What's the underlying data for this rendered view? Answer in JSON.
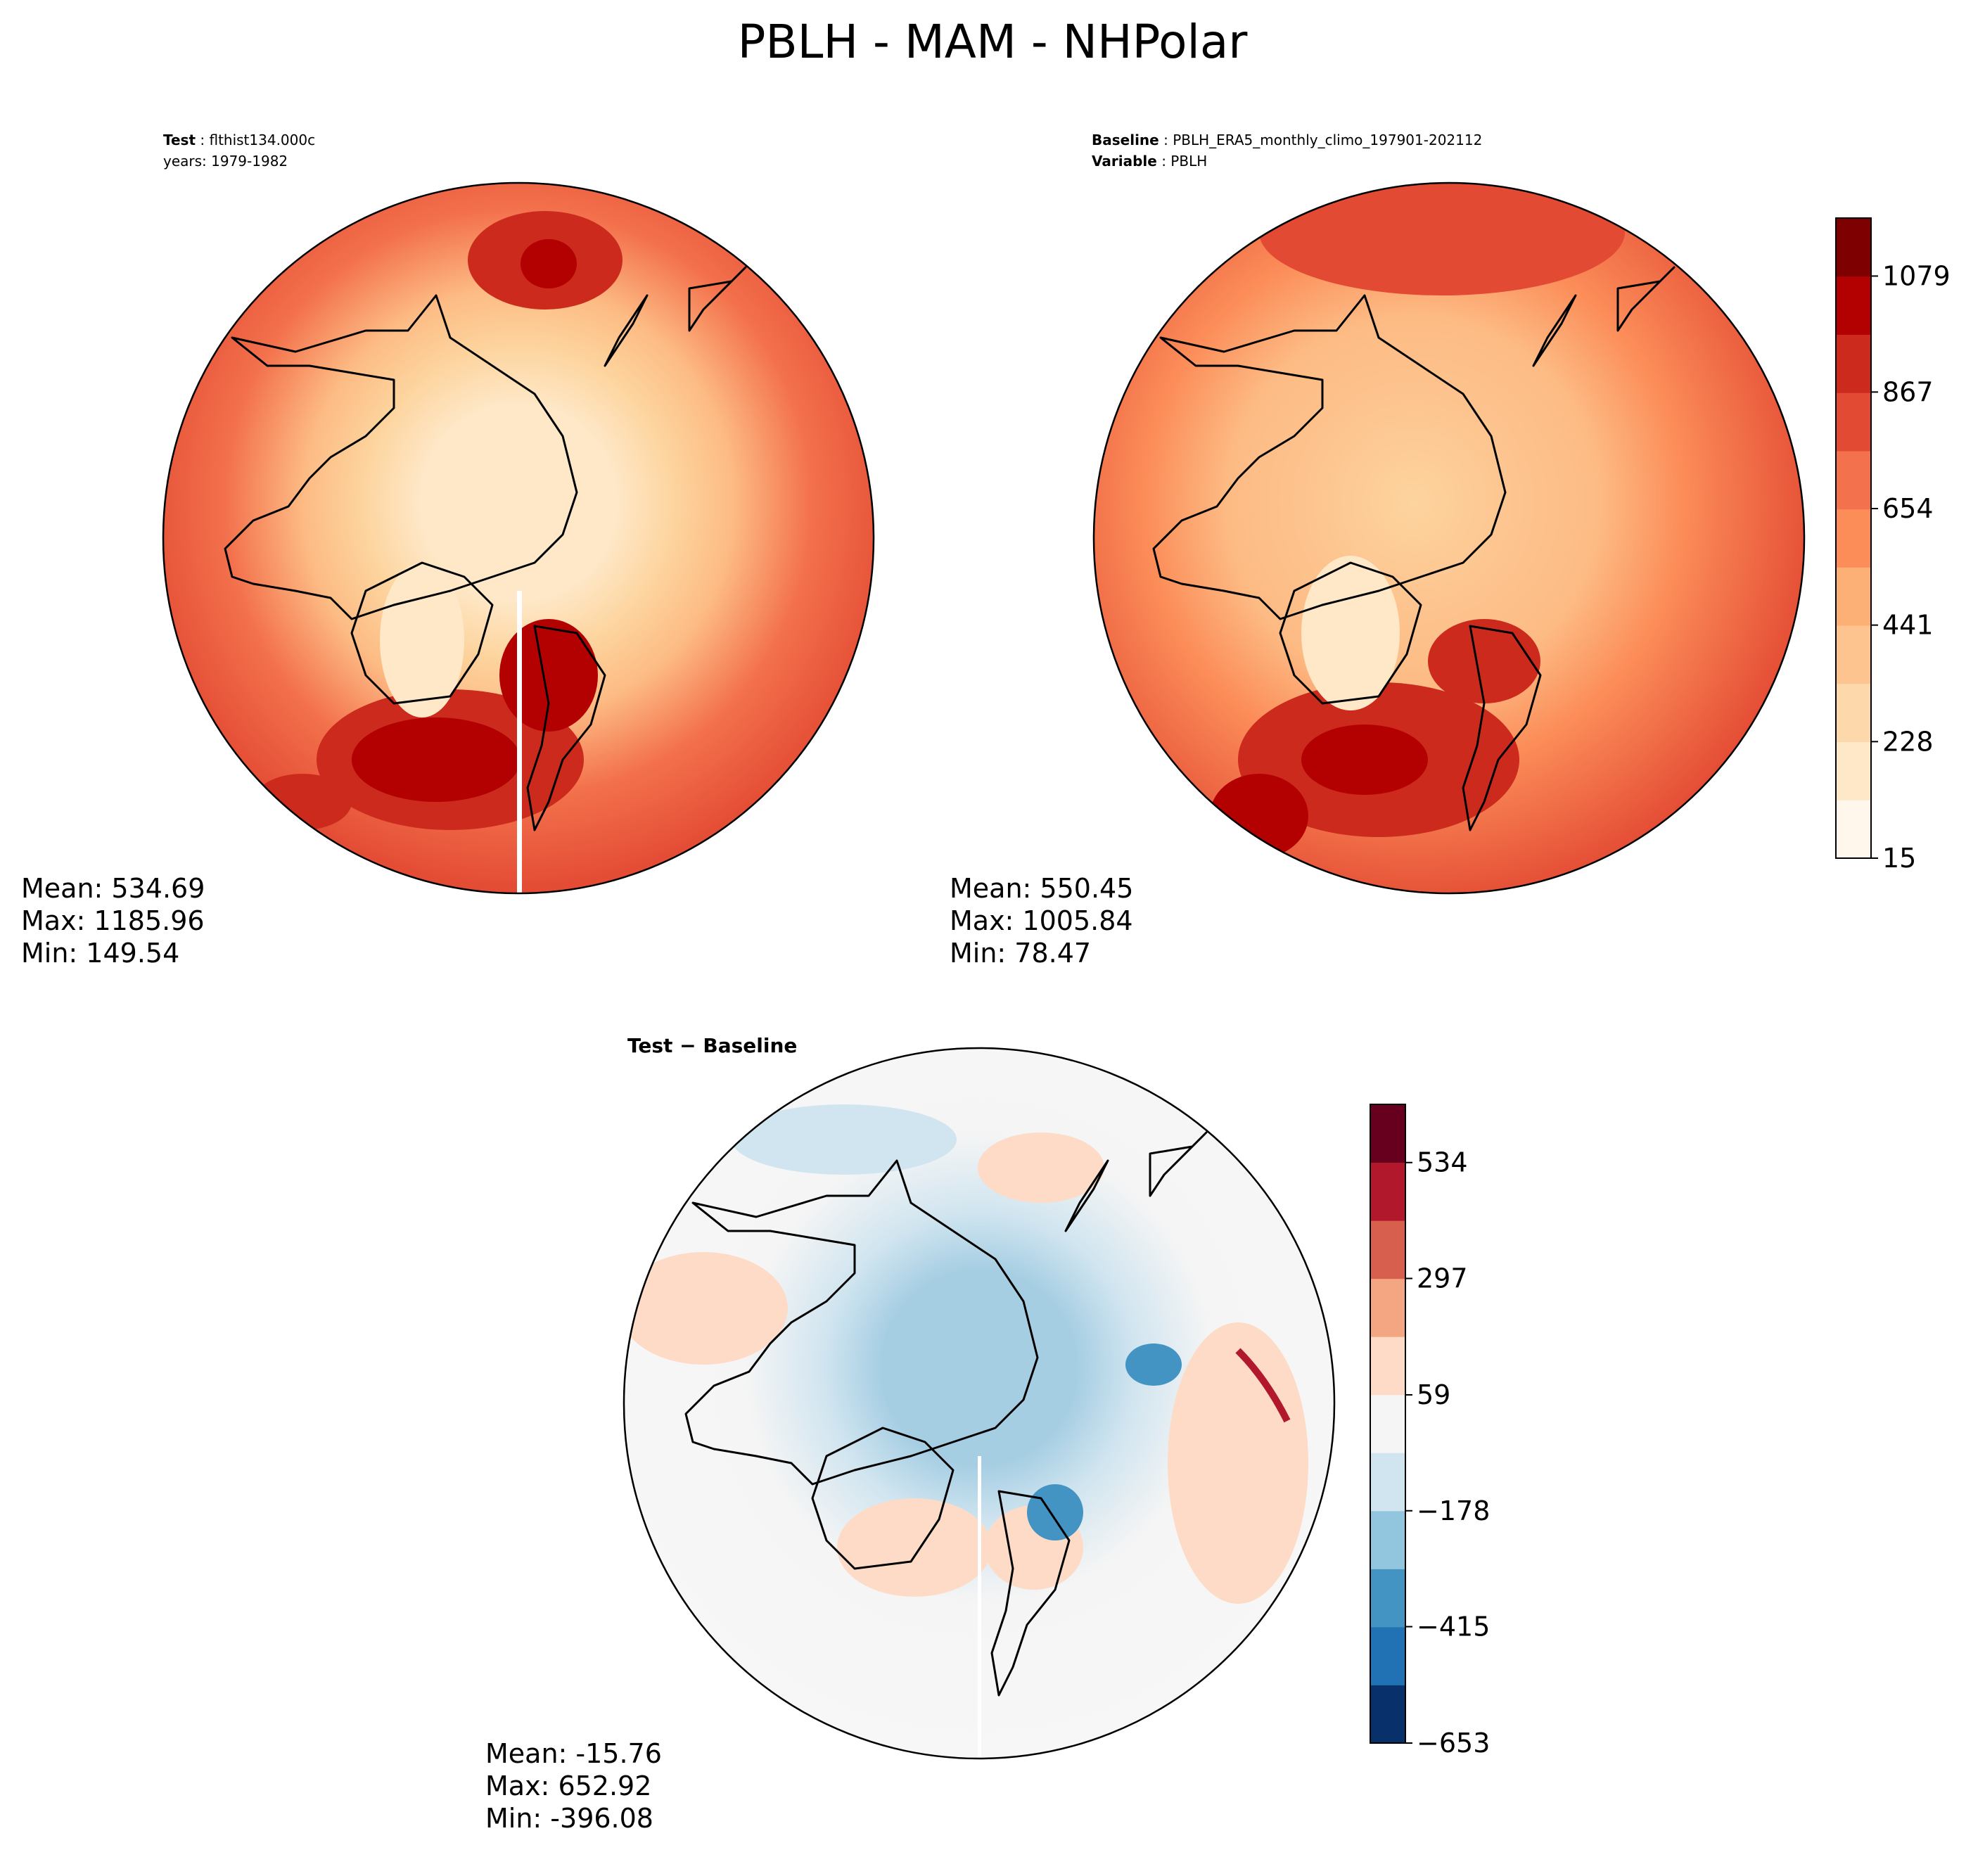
{
  "figure": {
    "title": "PBLH - MAM - NHPolar"
  },
  "chart_data": [
    {
      "type": "heatmap",
      "projection": "north-polar-stereographic",
      "annotation": {
        "label": "Test",
        "value": "flthist134.000c",
        "line2": "years: 1979-1982"
      },
      "stats": {
        "mean": "Mean: 534.69",
        "max": "Max: 1185.96",
        "min": "Min: 149.54"
      },
      "colormap": "OrRd",
      "levels_range": [
        15,
        1185.96
      ],
      "shared_colorbar": true
    },
    {
      "type": "heatmap",
      "projection": "north-polar-stereographic",
      "annotation": {
        "label": "Baseline",
        "value": "PBLH_ERA5_monthly_climo_197901-202112",
        "label2": "Variable",
        "value2": "PBLH"
      },
      "stats": {
        "mean": "Mean: 550.45",
        "max": "Max: 1005.84",
        "min": "Min: 78.47"
      },
      "colorbar": {
        "range": [
          15,
          1185
        ],
        "ticks": [
          15,
          228,
          441,
          654,
          867,
          1079
        ],
        "tick_labels": [
          "15",
          "228",
          "441",
          "654",
          "867",
          "1079"
        ],
        "colors": [
          "#fff7ec",
          "#fee8c8",
          "#fdd8ab",
          "#fdc48f",
          "#fcb076",
          "#fc8d59",
          "#f3714c",
          "#e34a33",
          "#cb2a1d",
          "#b30000",
          "#7f0000"
        ]
      }
    },
    {
      "type": "heatmap",
      "projection": "north-polar-stereographic",
      "title": "Test − Baseline",
      "stats": {
        "mean": "Mean: -15.76",
        "max": "Max: 652.92",
        "min": "Min: -396.08"
      },
      "colorbar": {
        "range": [
          -653,
          653
        ],
        "ticks": [
          -653,
          -415,
          -178,
          59,
          297,
          534
        ],
        "tick_labels": [
          "−653",
          "−415",
          "−178",
          "59",
          "297",
          "534"
        ],
        "colors": [
          "#08306b",
          "#2171b5",
          "#4393c3",
          "#92c5de",
          "#d1e5f0",
          "#f5f5f5",
          "#fddbc7",
          "#f4a582",
          "#d6604d",
          "#b2182b",
          "#67001f"
        ]
      }
    }
  ]
}
